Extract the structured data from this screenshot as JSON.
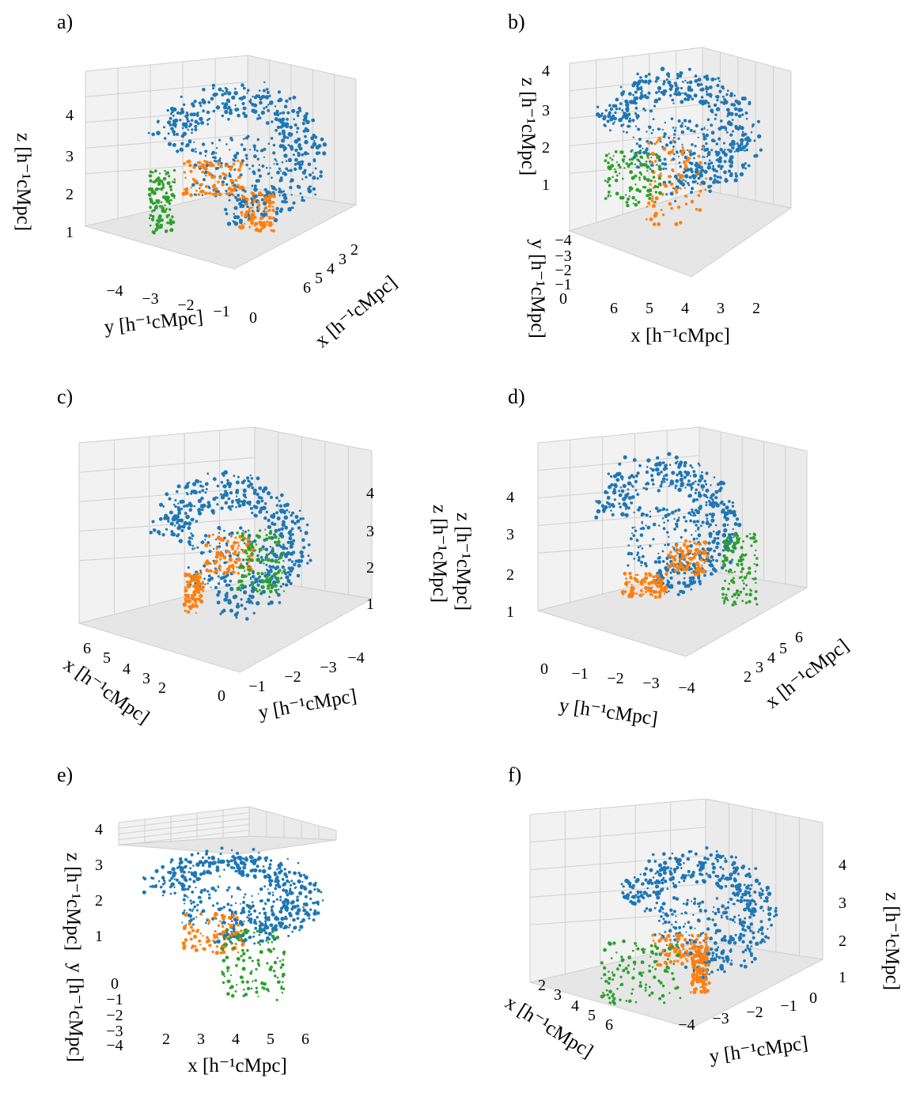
{
  "figure": {
    "panel_count": 6
  },
  "chart_data": [
    {
      "type": "scatter",
      "subtitle": "a)",
      "panel_letter": "a)",
      "series": [
        {
          "color": "#1f77b4"
        },
        {
          "color": "#ff7f0e"
        },
        {
          "color": "#2ca02c"
        }
      ],
      "axes": {
        "x": {
          "label": "x  [h⁻¹cMpc]",
          "ticks": [
            "6",
            "5",
            "4",
            "3",
            "2"
          ]
        },
        "y": {
          "label": "y  [h⁻¹cMpc]",
          "ticks": [
            "−4",
            "−3",
            "−2",
            "−1",
            "0"
          ]
        },
        "z": {
          "label": "z  [h⁻¹cMpc]",
          "ticks": [
            "4",
            "3",
            "2",
            "1"
          ]
        }
      },
      "xlim": [
        1.5,
        6.5
      ],
      "ylim": [
        -4.5,
        0.3
      ],
      "zlim": [
        0.5,
        4.5
      ],
      "grid": true
    },
    {
      "type": "scatter",
      "subtitle": "b)",
      "panel_letter": "b)",
      "series": [
        {
          "color": "#1f77b4"
        },
        {
          "color": "#ff7f0e"
        },
        {
          "color": "#2ca02c"
        }
      ],
      "axes": {
        "x": {
          "label": "x  [h⁻¹cMpc]",
          "ticks": [
            "6",
            "5",
            "4",
            "3",
            "2"
          ]
        },
        "y": {
          "label": "y  [h⁻¹cMpc]",
          "ticks": [
            "−4",
            "−3",
            "−2",
            "−1",
            "0"
          ]
        },
        "z": {
          "label": "z  [h⁻¹cMpc]",
          "ticks": [
            "4",
            "3",
            "2",
            "1"
          ]
        }
      },
      "xlim": [
        1.5,
        6.5
      ],
      "ylim": [
        -4.5,
        0.3
      ],
      "zlim": [
        0.5,
        4.5
      ],
      "grid": true
    },
    {
      "type": "scatter",
      "subtitle": "c)",
      "panel_letter": "c)",
      "series": [
        {
          "color": "#1f77b4"
        },
        {
          "color": "#ff7f0e"
        },
        {
          "color": "#2ca02c"
        }
      ],
      "axes": {
        "x": {
          "label": "x  [h⁻¹cMpc]",
          "ticks": [
            "6",
            "5",
            "4",
            "3",
            "2"
          ]
        },
        "y": {
          "label": "y  [h⁻¹cMpc]",
          "ticks": [
            "0",
            "−1",
            "−2",
            "−3",
            "−4"
          ]
        },
        "z": {
          "label": "z  [h⁻¹cMpc]",
          "ticks": [
            "4",
            "3",
            "2",
            "1"
          ]
        }
      },
      "xlim": [
        1.5,
        6.5
      ],
      "ylim": [
        -4.5,
        0.3
      ],
      "zlim": [
        0.5,
        4.5
      ],
      "grid": true
    },
    {
      "type": "scatter",
      "subtitle": "d)",
      "panel_letter": "d)",
      "series": [
        {
          "color": "#1f77b4"
        },
        {
          "color": "#ff7f0e"
        },
        {
          "color": "#2ca02c"
        }
      ],
      "axes": {
        "x": {
          "label": "x  [h⁻¹cMpc]",
          "ticks": [
            "2",
            "3",
            "4",
            "5",
            "6"
          ]
        },
        "y": {
          "label": "y  [h⁻¹cMpc]",
          "ticks": [
            "0",
            "−1",
            "−2",
            "−3",
            "−4"
          ]
        },
        "z": {
          "label": "z  [h⁻¹cMpc]",
          "ticks": [
            "4",
            "3",
            "2",
            "1"
          ]
        }
      },
      "xlim": [
        1.5,
        6.5
      ],
      "ylim": [
        -4.5,
        0.3
      ],
      "zlim": [
        0.5,
        4.5
      ],
      "grid": true
    },
    {
      "type": "scatter",
      "subtitle": "e)",
      "panel_letter": "e)",
      "series": [
        {
          "color": "#1f77b4"
        },
        {
          "color": "#ff7f0e"
        },
        {
          "color": "#2ca02c"
        }
      ],
      "axes": {
        "x": {
          "label": "x  [h⁻¹cMpc]",
          "ticks": [
            "2",
            "3",
            "4",
            "5",
            "6"
          ]
        },
        "y": {
          "label": "y  [h⁻¹cMpc]",
          "ticks": [
            "0",
            "−1",
            "−2",
            "−3",
            "−4"
          ]
        },
        "z": {
          "label": "z  [h⁻¹cMpc]",
          "ticks": [
            "4",
            "3",
            "2",
            "1"
          ]
        }
      },
      "xlim": [
        1.5,
        6.5
      ],
      "ylim": [
        -4.5,
        0.3
      ],
      "zlim": [
        0.5,
        4.5
      ],
      "grid": true
    },
    {
      "type": "scatter",
      "subtitle": "f)",
      "panel_letter": "f)",
      "series": [
        {
          "color": "#1f77b4"
        },
        {
          "color": "#ff7f0e"
        },
        {
          "color": "#2ca02c"
        }
      ],
      "axes": {
        "x": {
          "label": "x  [h⁻¹cMpc]",
          "ticks": [
            "2",
            "3",
            "4",
            "5",
            "6"
          ]
        },
        "y": {
          "label": "y  [h⁻¹cMpc]",
          "ticks": [
            "−4",
            "−3",
            "−2",
            "−1",
            "0"
          ]
        },
        "z": {
          "label": "z  [h⁻¹cMpc]",
          "ticks": [
            "4",
            "3",
            "2",
            "1"
          ]
        }
      },
      "xlim": [
        1.5,
        6.5
      ],
      "ylim": [
        -4.5,
        0.3
      ],
      "zlim": [
        0.5,
        4.5
      ],
      "grid": true
    }
  ]
}
